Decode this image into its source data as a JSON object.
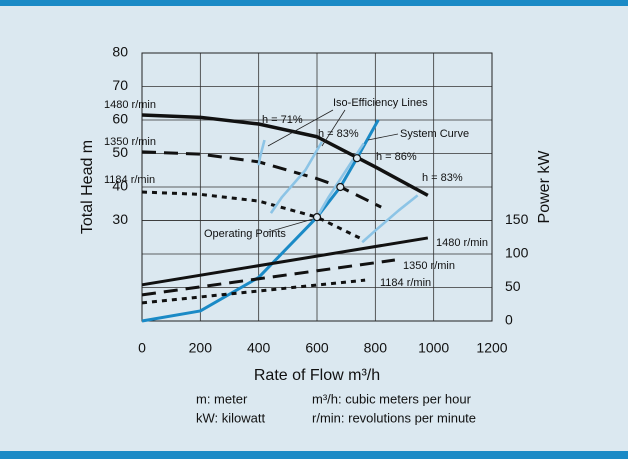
{
  "chart_data": {
    "type": "line",
    "xlabel": "Rate of Flow m³/h",
    "ylabel": "Total Head m",
    "y2label": "Power kW",
    "xlim": [
      0,
      1200
    ],
    "xticks": [
      0,
      200,
      400,
      600,
      800,
      1000,
      1200
    ],
    "ylim": [
      0,
      80
    ],
    "yticks": [
      30,
      40,
      50,
      60,
      70,
      80
    ],
    "y2lim": [
      0,
      400
    ],
    "y2ticks": [
      0,
      50,
      100,
      150
    ],
    "grid": true,
    "series": [
      {
        "name": "1480 r/min",
        "color": "#111111",
        "style": "solid",
        "x": [
          0,
          200,
          400,
          600,
          800,
          980
        ],
        "values": [
          61.5,
          60.8,
          58.8,
          55,
          46,
          37.5
        ]
      },
      {
        "name": "1350 r/min",
        "color": "#111111",
        "style": "dashed",
        "x": [
          0,
          200,
          400,
          600,
          680,
          820
        ],
        "values": [
          50.5,
          49.8,
          47.5,
          42.5,
          40,
          34
        ]
      },
      {
        "name": "1184 r/min",
        "color": "#111111",
        "style": "dotted",
        "x": [
          0,
          200,
          400,
          600,
          765
        ],
        "values": [
          38.5,
          37.8,
          35.8,
          31,
          24
        ]
      },
      {
        "name": "System Curve",
        "color": "#1a8ac6",
        "style": "solid",
        "x": [
          0,
          200,
          400,
          600,
          680,
          737,
          810
        ],
        "values": [
          0,
          3,
          13,
          31,
          40,
          48.6,
          60
        ]
      },
      {
        "name": "h = 71%",
        "color": "#8cc4e6",
        "style": "solid",
        "x": [
          420,
          405,
          400
        ],
        "values": [
          54,
          49,
          46.5
        ]
      },
      {
        "name": "h = 83%",
        "color": "#8cc4e6",
        "style": "solid",
        "x": [
          617,
          560,
          480,
          442
        ],
        "values": [
          53.5,
          45,
          37,
          32.2
        ]
      },
      {
        "name": "h = 86%",
        "color": "#8cc4e6",
        "style": "solid",
        "x": [
          760,
          700,
          640,
          600
        ],
        "values": [
          53,
          45,
          37,
          31
        ]
      },
      {
        "name": "h = 83%",
        "color": "#8cc4e6",
        "style": "solid",
        "x": [
          945,
          880,
          800,
          755
        ],
        "values": [
          37.5,
          33,
          27,
          23.5
        ]
      },
      {
        "name": "1480 r/min",
        "color": "#111111",
        "style": "solid",
        "axis": "y2",
        "x": [
          0,
          980
        ],
        "values": [
          54,
          124
        ]
      },
      {
        "name": "1350 r/min",
        "color": "#111111",
        "style": "dashed",
        "axis": "y2",
        "x": [
          0,
          867
        ],
        "values": [
          39,
          91
        ]
      },
      {
        "name": "1184 r/min",
        "color": "#111111",
        "style": "dotted",
        "axis": "y2",
        "x": [
          0,
          765
        ],
        "values": [
          27,
          61
        ]
      }
    ],
    "operating_points": {
      "x": [
        600,
        680,
        737
      ],
      "values": [
        31,
        40,
        48.6
      ]
    },
    "annotations": [
      "Iso-Efficiency Lines",
      "Operating Points"
    ],
    "notes": [
      "m: meter",
      "kW: kilowatt",
      "m³/h: cubic meters per hour",
      "r/min: revolutions per minute"
    ]
  }
}
